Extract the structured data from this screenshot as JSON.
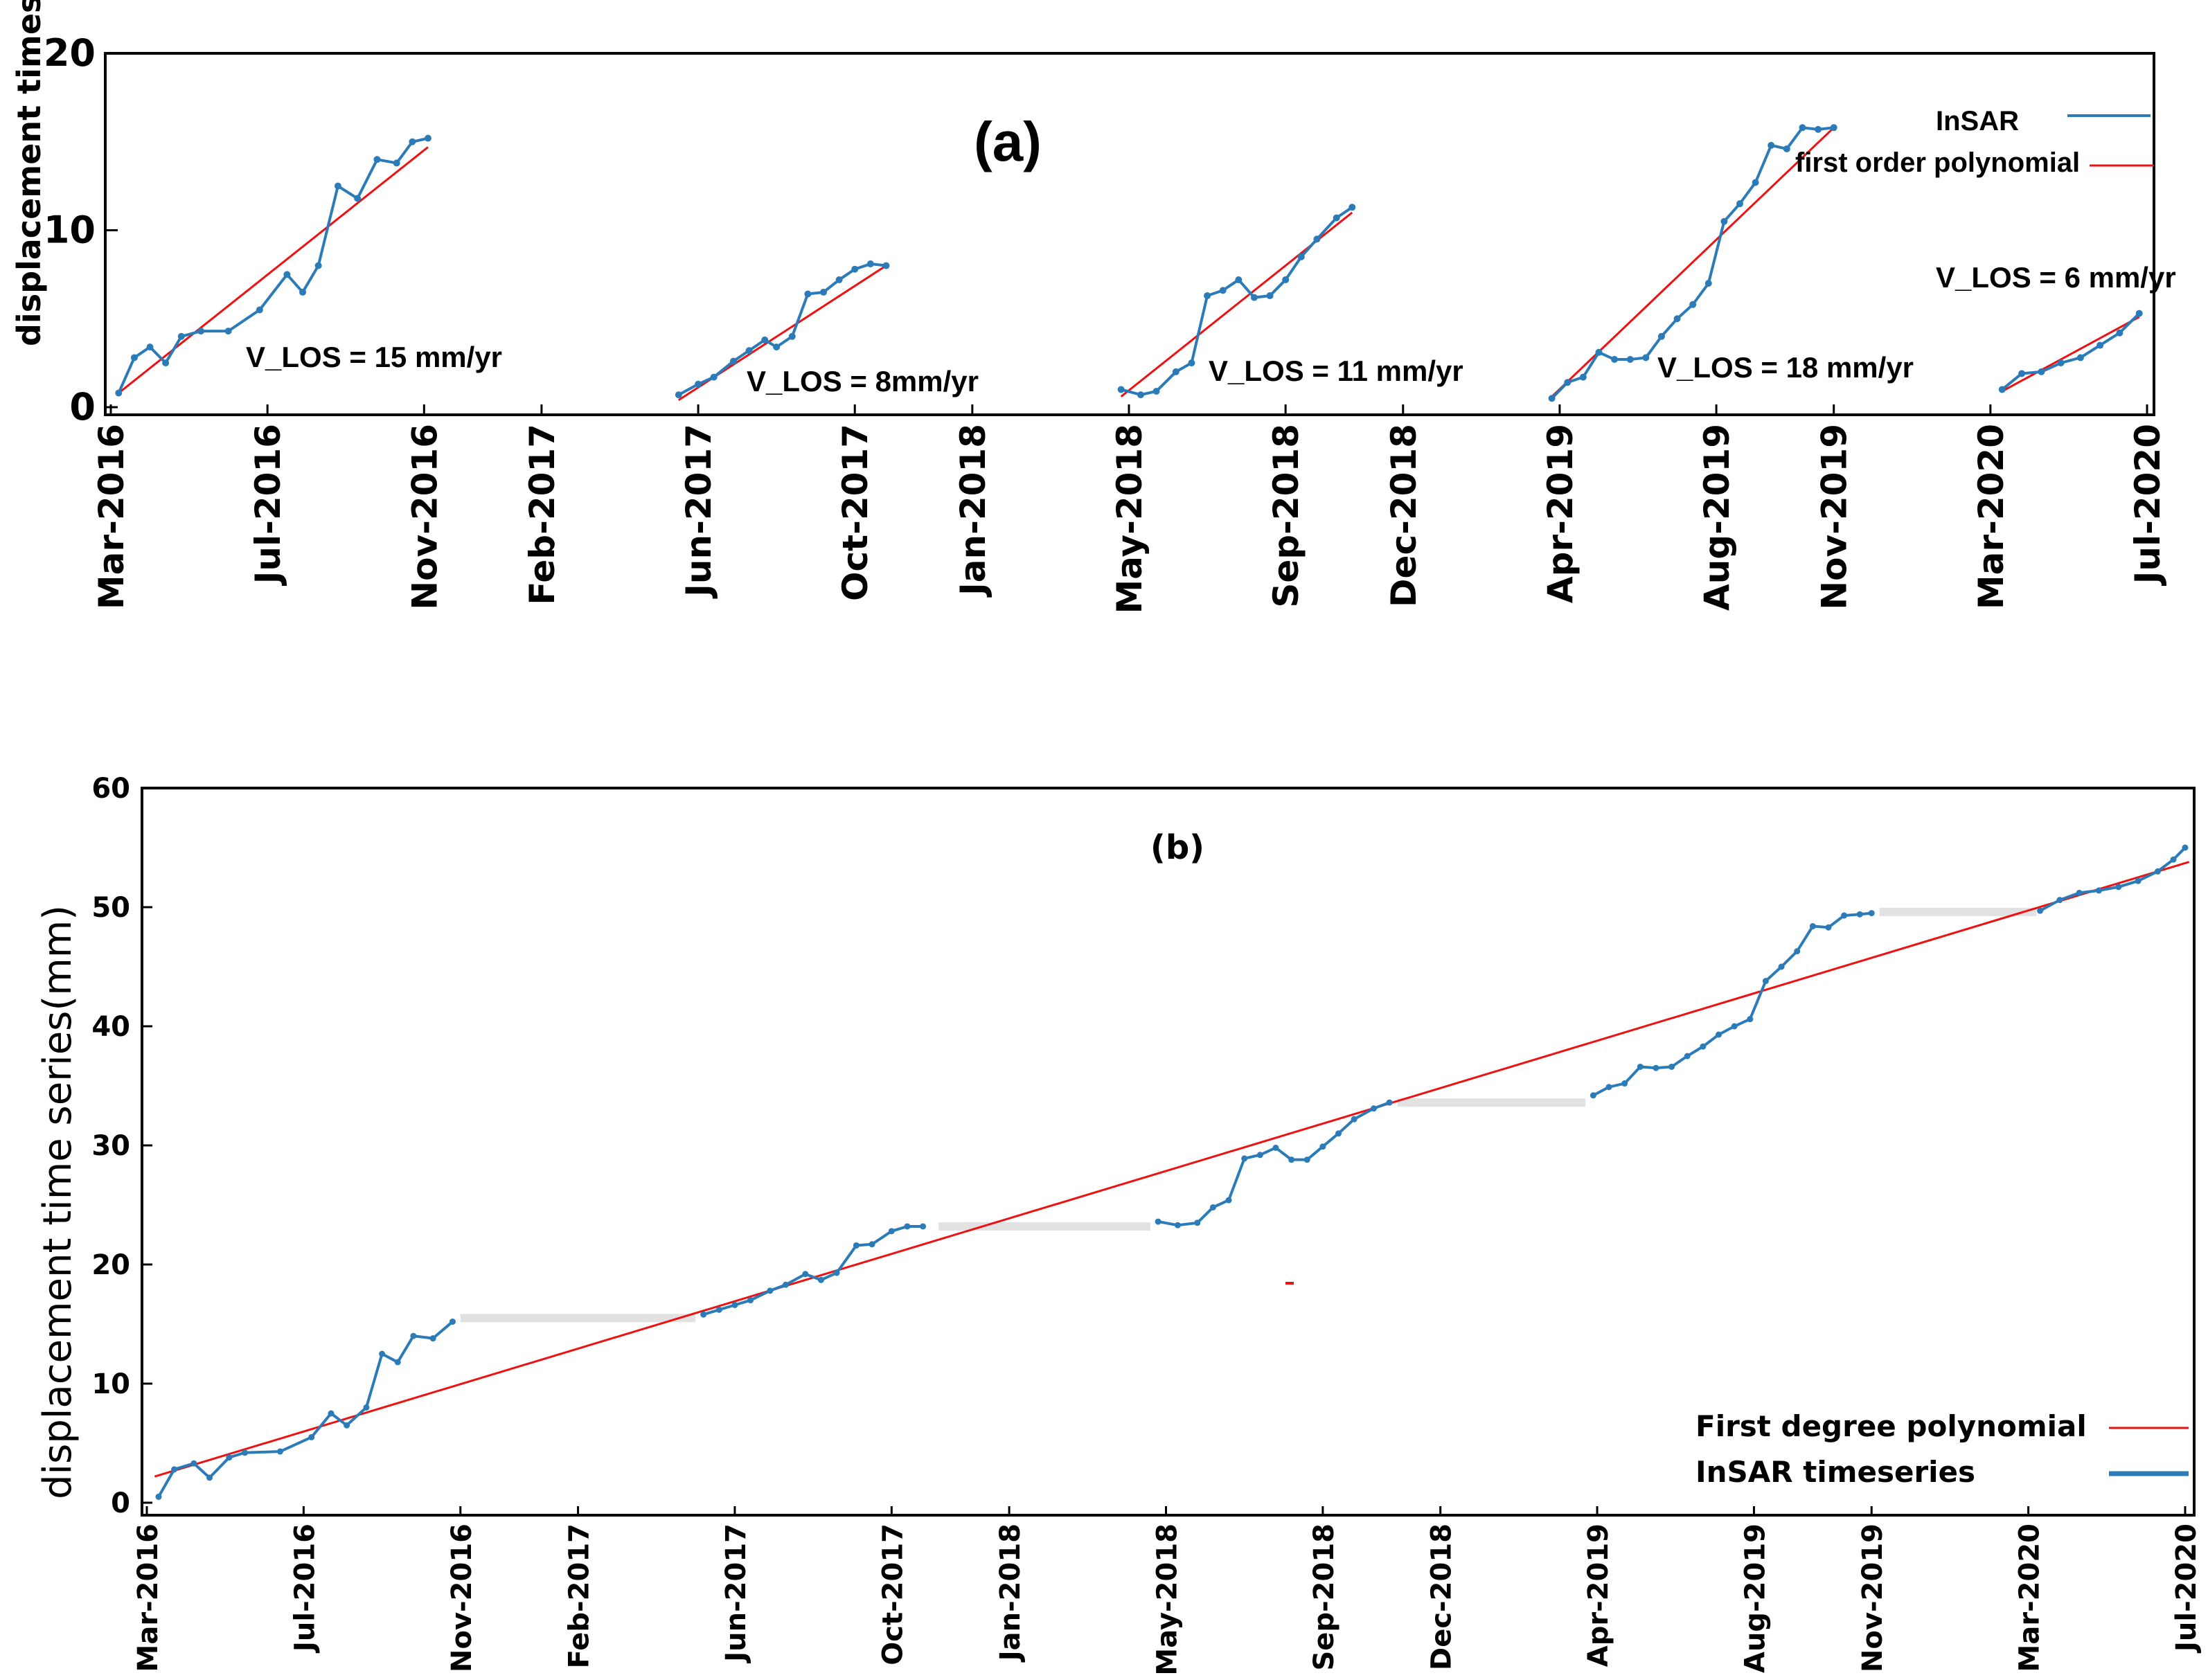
{
  "chart_data": [
    {
      "panel": "(a)",
      "type": "line",
      "title": "(a)",
      "ylabel": "displacement timeseries (mm)",
      "ylim": [
        0,
        20
      ],
      "yticks": [
        0,
        10,
        20
      ],
      "xlim": [
        0,
        52
      ],
      "xtick_labels": [
        "Mar-2016",
        "Jul-2016",
        "Nov-2016",
        "Feb-2017",
        "Jun-2017",
        "Oct-2017",
        "Jan-2018",
        "May-2018",
        "Sep-2018",
        "Dec-2018",
        "Apr-2019",
        "Aug-2019",
        "Nov-2019",
        "Mar-2020",
        "Jul-2020"
      ],
      "xtick_positions": [
        0,
        4,
        8,
        11,
        15,
        19,
        22,
        26,
        30,
        33,
        37,
        41,
        44,
        48,
        52
      ],
      "legend": [
        {
          "label": "InSAR",
          "color": "#2b7bb9"
        },
        {
          "label": "first order polynomial",
          "color": "#ee1111"
        }
      ],
      "segments": [
        {
          "annotation": "V_LOS = 15 mm/yr",
          "x": [
            0.2,
            0.6,
            1.0,
            1.4,
            1.8,
            2.3,
            3.0,
            3.8,
            4.5,
            4.9,
            5.3,
            5.8,
            6.3,
            6.8,
            7.3,
            7.7,
            8.1
          ],
          "y": [
            0.8,
            2.8,
            3.4,
            2.5,
            4.0,
            4.3,
            4.3,
            5.5,
            7.5,
            6.5,
            8.0,
            12.5,
            11.8,
            14.0,
            13.8,
            15.0,
            15.2
          ],
          "fit": {
            "x": [
              0.2,
              8.1
            ],
            "y": [
              0.8,
              14.7
            ]
          }
        },
        {
          "annotation": "V_LOS = 8mm/yr",
          "x": [
            14.5,
            15.0,
            15.4,
            15.9,
            16.3,
            16.7,
            17.0,
            17.4,
            17.8,
            18.2,
            18.6,
            19.0,
            19.4,
            19.8
          ],
          "y": [
            0.7,
            1.3,
            1.7,
            2.6,
            3.2,
            3.8,
            3.4,
            4.0,
            6.4,
            6.5,
            7.2,
            7.8,
            8.1,
            8.0
          ],
          "fit": {
            "x": [
              14.5,
              19.8
            ],
            "y": [
              0.4,
              8.0
            ]
          }
        },
        {
          "annotation": "V_LOS = 11 mm/yr",
          "x": [
            25.8,
            26.3,
            26.7,
            27.2,
            27.6,
            28.0,
            28.4,
            28.8,
            29.2,
            29.6,
            30.0,
            30.4,
            30.8,
            31.3,
            31.7
          ],
          "y": [
            1.0,
            0.7,
            0.9,
            2.0,
            2.5,
            6.3,
            6.6,
            7.2,
            6.2,
            6.3,
            7.2,
            8.5,
            9.5,
            10.7,
            11.3
          ],
          "fit": {
            "x": [
              25.8,
              31.7
            ],
            "y": [
              0.6,
              11.0
            ]
          }
        },
        {
          "annotation": "V_LOS = 18 mm/yr",
          "x": [
            36.8,
            37.2,
            37.6,
            38.0,
            38.4,
            38.8,
            39.2,
            39.6,
            40.0,
            40.4,
            40.8,
            41.2,
            41.6,
            42.0,
            42.4,
            42.8,
            43.2,
            43.6,
            44.0
          ],
          "y": [
            0.5,
            1.4,
            1.7,
            3.1,
            2.7,
            2.7,
            2.8,
            4.0,
            5.0,
            5.8,
            7.0,
            10.5,
            11.5,
            12.7,
            14.8,
            14.6,
            15.8,
            15.7,
            15.8
          ],
          "fit": {
            "x": [
              36.8,
              44.0
            ],
            "y": [
              0.6,
              15.8
            ]
          }
        },
        {
          "annotation": "V_LOS = 6 mm/yr",
          "x": [
            48.3,
            48.8,
            49.3,
            49.8,
            50.3,
            50.8,
            51.3,
            51.8
          ],
          "y": [
            1.0,
            1.9,
            2.0,
            2.5,
            2.8,
            3.5,
            4.2,
            5.3
          ],
          "fit": {
            "x": [
              48.3,
              51.8
            ],
            "y": [
              0.9,
              5.1
            ]
          }
        }
      ]
    },
    {
      "panel": "(b)",
      "type": "line",
      "title": "(b)",
      "ylabel": "displacement time series(mm)",
      "ylim": [
        0,
        60
      ],
      "yticks": [
        0,
        10,
        20,
        30,
        40,
        50,
        60
      ],
      "xlim": [
        0,
        52
      ],
      "xtick_labels": [
        "Mar-2016",
        "Jul-2016",
        "Nov-2016",
        "Feb-2017",
        "Jun-2017",
        "Oct-2017",
        "Jan-2018",
        "May-2018",
        "Sep-2018",
        "Dec-2018",
        "Apr-2019",
        "Aug-2019",
        "Nov-2019",
        "Mar-2020",
        "Jul-2020"
      ],
      "xtick_positions": [
        0,
        4,
        8,
        11,
        15,
        19,
        22,
        26,
        30,
        33,
        37,
        41,
        44,
        48,
        52
      ],
      "legend": [
        {
          "label": "First degree polynomial",
          "color": "#ee1111"
        },
        {
          "label": "InSAR timeseries",
          "color": "#2b7bb9"
        }
      ],
      "series": [
        {
          "x": [
            0.3,
            0.7,
            1.2,
            1.6,
            2.1,
            2.5,
            3.4,
            4.2,
            4.7,
            5.1,
            5.6,
            6.0,
            6.4,
            6.8,
            7.3,
            7.8
          ],
          "y": [
            0.5,
            2.8,
            3.3,
            2.1,
            3.8,
            4.2,
            4.3,
            5.5,
            7.5,
            6.5,
            8.0,
            12.5,
            11.8,
            14.0,
            13.8,
            15.2
          ]
        },
        {
          "x": [
            14.2,
            14.6,
            15.0,
            15.4,
            15.9,
            16.3,
            16.8,
            17.2,
            17.6,
            18.1,
            18.5,
            19.0,
            19.4,
            19.8
          ],
          "y": [
            15.8,
            16.2,
            16.6,
            17.0,
            17.8,
            18.3,
            19.2,
            18.7,
            19.3,
            21.6,
            21.7,
            22.8,
            23.2,
            23.2
          ],
          "prefix_gap": true
        },
        {
          "x": [
            25.8,
            26.3,
            26.8,
            27.2,
            27.6,
            28.0,
            28.4,
            28.8,
            29.2,
            29.6,
            30.0,
            30.4,
            30.8,
            31.3,
            31.7
          ],
          "y": [
            23.6,
            23.3,
            23.5,
            24.8,
            25.4,
            28.9,
            29.2,
            29.8,
            28.8,
            28.8,
            29.9,
            31.0,
            32.2,
            33.1,
            33.6
          ]
        },
        {
          "x": [
            36.9,
            37.3,
            37.7,
            38.1,
            38.5,
            38.9,
            39.3,
            39.7,
            40.1,
            40.5,
            40.9,
            41.3,
            41.7,
            42.1,
            42.5,
            42.9,
            43.3,
            43.7,
            44.0
          ],
          "y": [
            34.2,
            34.9,
            35.2,
            36.6,
            36.5,
            36.6,
            37.5,
            38.3,
            39.3,
            40.0,
            40.6,
            43.8,
            45.0,
            46.3,
            48.4,
            48.3,
            49.3,
            49.4,
            49.5
          ]
        },
        {
          "x": [
            48.3,
            48.8,
            49.3,
            49.8,
            50.3,
            50.8,
            51.3,
            51.7,
            52.0
          ],
          "y": [
            49.7,
            50.6,
            51.2,
            51.4,
            51.7,
            52.2,
            53.0,
            54.0,
            55.0
          ]
        }
      ],
      "gaps": [
        {
          "x": [
            8.0,
            14.0
          ],
          "y": 15.5
        },
        {
          "x": [
            20.2,
            25.6
          ],
          "y": 23.2
        },
        {
          "x": [
            31.9,
            36.7
          ],
          "y": 33.6
        },
        {
          "x": [
            44.2,
            48.2
          ],
          "y": 49.6
        }
      ],
      "fit": {
        "x": [
          0.2,
          52.1
        ],
        "y": [
          2.2,
          53.8
        ]
      }
    }
  ],
  "annotations_a": [
    "V_LOS = 15 mm/yr",
    "V_LOS = 8mm/yr",
    "V_LOS = 11 mm/yr",
    "V_LOS = 18 mm/yr",
    "V_LOS = 6 mm/yr"
  ]
}
